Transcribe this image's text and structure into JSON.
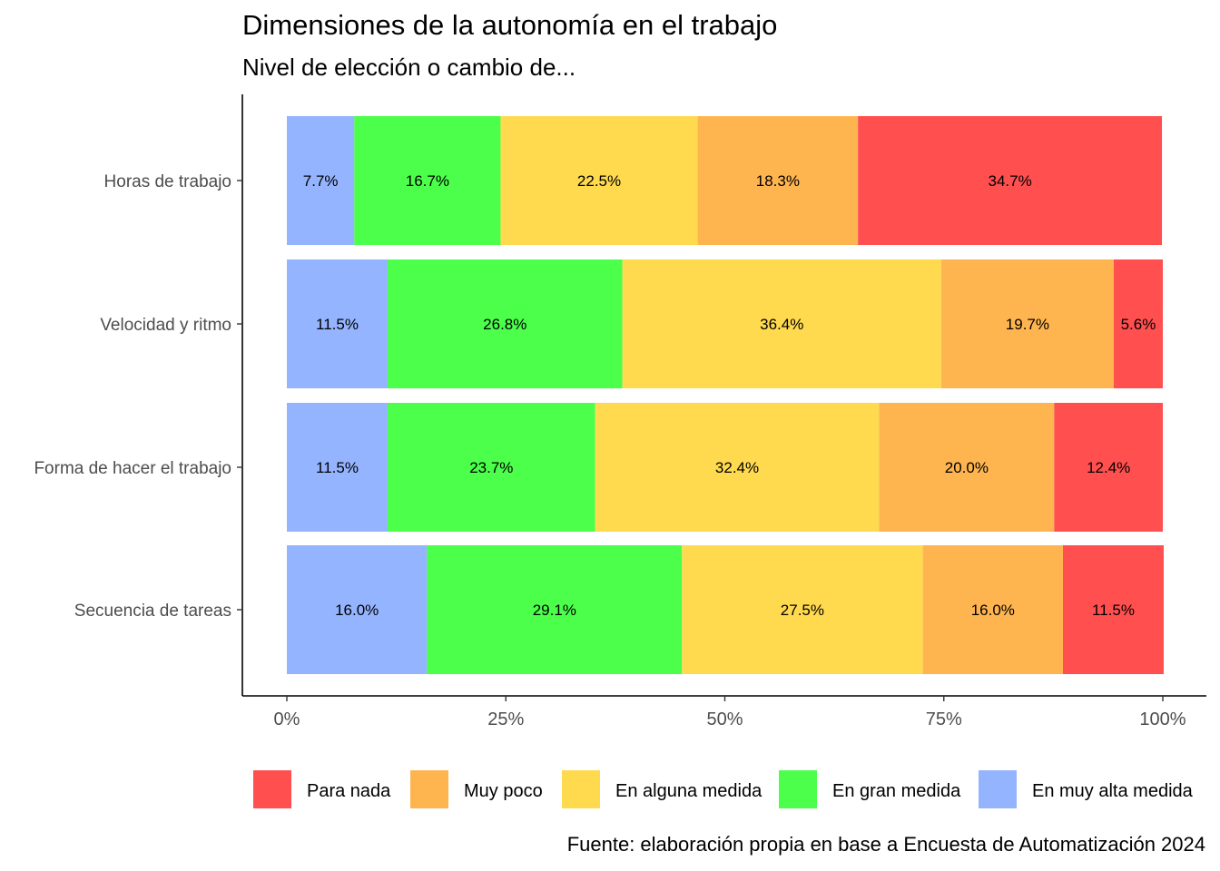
{
  "chart_data": {
    "type": "bar",
    "orientation": "horizontal",
    "stacked": true,
    "percent": true,
    "title": "Dimensiones de la autonomía en el trabajo",
    "subtitle": "Nivel de elección o cambio de...",
    "caption": "Fuente: elaboración propia en base a Encuesta de Automatización 2024",
    "categories": [
      "Horas de trabajo",
      "Velocidad y ritmo",
      "Forma de hacer el trabajo",
      "Secuencia de tareas"
    ],
    "x_ticks": [
      "0%",
      "25%",
      "50%",
      "75%",
      "100%"
    ],
    "xlim": [
      0,
      100
    ],
    "legend_position": "bottom",
    "grid": false,
    "series": [
      {
        "name": "En muy alta medida",
        "color": "#94B4FF",
        "values": [
          7.7,
          11.5,
          11.5,
          16.0
        ],
        "labels": [
          "7.7%",
          "11.5%",
          "11.5%",
          "16.0%"
        ]
      },
      {
        "name": "En gran medida",
        "color": "#4BFF4B",
        "values": [
          16.7,
          26.8,
          23.7,
          29.1
        ],
        "labels": [
          "16.7%",
          "26.8%",
          "23.7%",
          "29.1%"
        ]
      },
      {
        "name": "En alguna medida",
        "color": "#FFDA4F",
        "values": [
          22.5,
          36.4,
          32.4,
          27.5
        ],
        "labels": [
          "22.5%",
          "36.4%",
          "32.4%",
          "27.5%"
        ]
      },
      {
        "name": "Muy poco",
        "color": "#FFB54F",
        "values": [
          18.3,
          19.7,
          20.0,
          16.0
        ],
        "labels": [
          "18.3%",
          "19.7%",
          "20.0%",
          "16.0%"
        ]
      },
      {
        "name": "Para nada",
        "color": "#FF4F4F",
        "values": [
          34.7,
          5.6,
          12.4,
          11.5
        ],
        "labels": [
          "34.7%",
          "5.6%",
          "12.4%",
          "11.5%"
        ]
      }
    ],
    "legend_order": [
      "Para nada",
      "Muy poco",
      "En alguna medida",
      "En gran medida",
      "En muy alta medida"
    ]
  }
}
